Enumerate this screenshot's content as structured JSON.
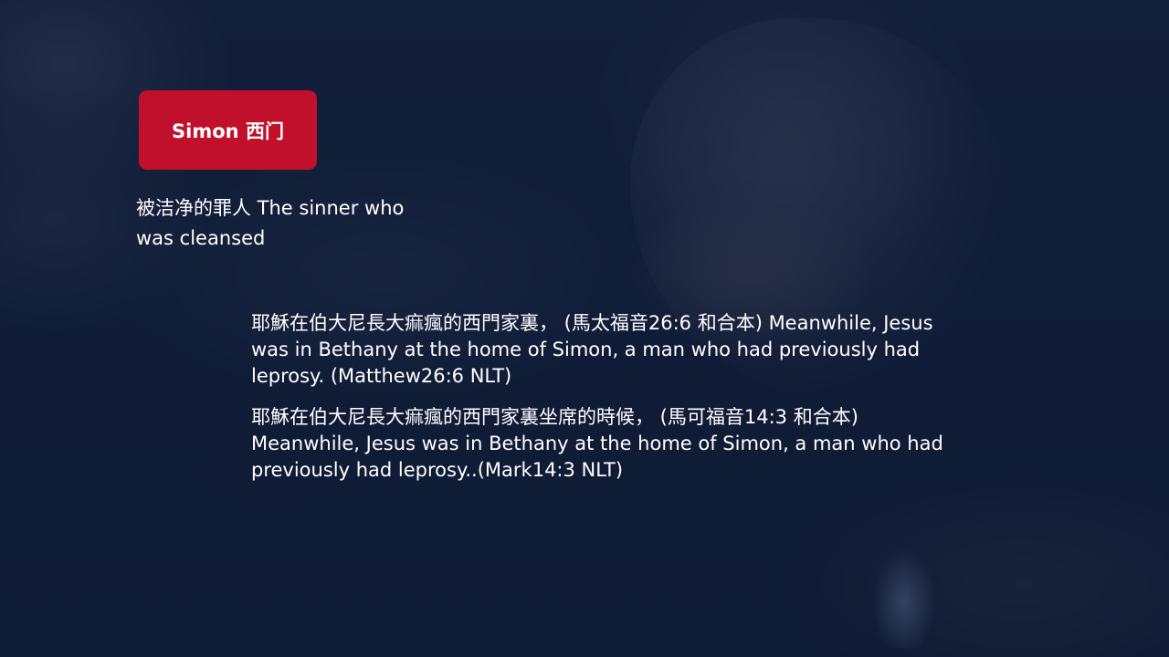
{
  "slide": {
    "title": "Simon 西门",
    "subtitle": "被洁净的罪人 The sinner who was cleansed",
    "verses": [
      "耶穌在伯大尼長大痲瘋的西門家裏， (馬太福音26:6 和合本) Meanwhile, Jesus was in Bethany at the home of Simon, a man who had previously had leprosy. (Matthew26:6 NLT)",
      "耶穌在伯大尼長大痲瘋的西門家裏坐席的時候， (馬可福音14:3 和合本) Meanwhile, Jesus was in Bethany at the home of Simon, a man who had previously had leprosy..(Mark14:3 NLT)"
    ]
  },
  "colors": {
    "title_box": "#c0102c",
    "background": "#0f1c33",
    "text": "#ffffff"
  }
}
